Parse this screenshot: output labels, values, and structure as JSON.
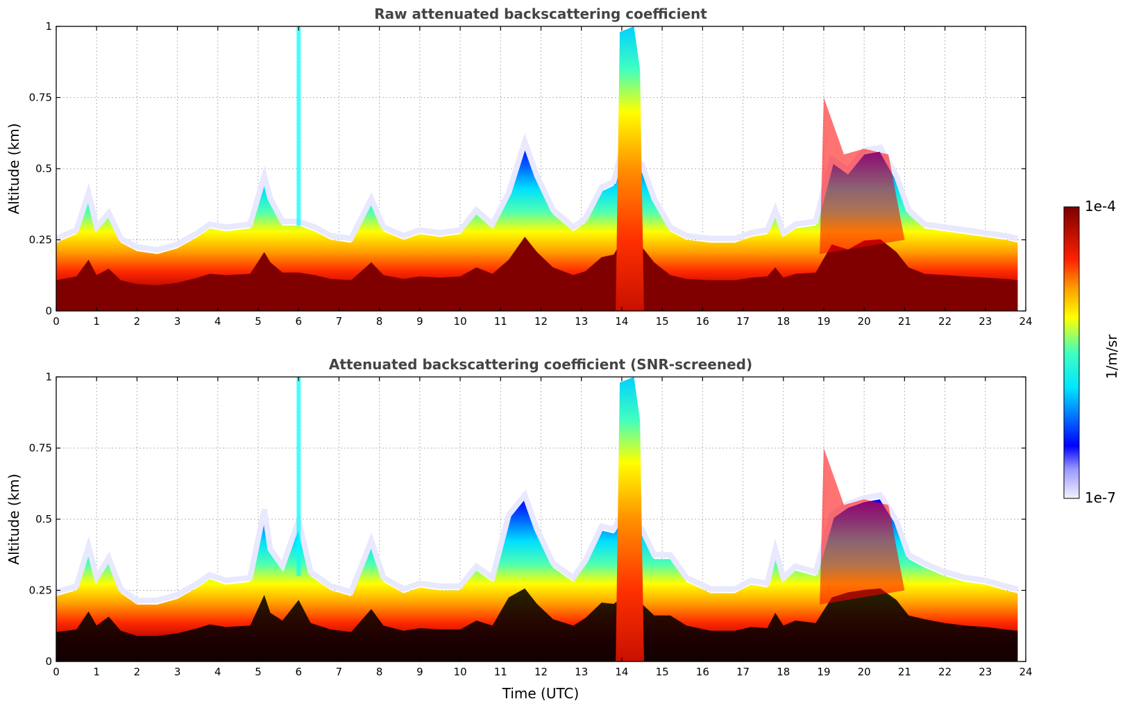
{
  "colors": {
    "low": "#e8e8ff",
    "blue": "#0000ff",
    "cyan": "#00ffff",
    "yellow": "#ffff00",
    "red": "#ff0000",
    "high": "#800000",
    "screened": "#000000",
    "title": "#444444"
  },
  "chart_data": [
    {
      "type": "heatmap",
      "title": "Raw attenuated backscattering coefficient",
      "xlabel": "",
      "ylabel": "Altitude (km)",
      "xlim": [
        0,
        24
      ],
      "ylim": [
        0,
        1
      ],
      "xticks": [
        "0",
        "1",
        "2",
        "3",
        "4",
        "5",
        "6",
        "7",
        "8",
        "9",
        "10",
        "11",
        "12",
        "13",
        "14",
        "15",
        "16",
        "17",
        "18",
        "19",
        "20",
        "21",
        "22",
        "23",
        "24"
      ],
      "yticks": [
        "0",
        "0.25",
        "0.5",
        "0.75",
        "1"
      ],
      "grid": true,
      "screened": false,
      "boundary_layer_top_km": [
        [
          0.0,
          0.24
        ],
        [
          0.5,
          0.27
        ],
        [
          0.8,
          0.4
        ],
        [
          1.0,
          0.28
        ],
        [
          1.3,
          0.33
        ],
        [
          1.6,
          0.24
        ],
        [
          2.0,
          0.21
        ],
        [
          2.5,
          0.2
        ],
        [
          3.0,
          0.22
        ],
        [
          3.5,
          0.26
        ],
        [
          3.8,
          0.29
        ],
        [
          4.2,
          0.28
        ],
        [
          4.8,
          0.29
        ],
        [
          5.15,
          0.46
        ],
        [
          5.3,
          0.38
        ],
        [
          5.6,
          0.3
        ],
        [
          6.0,
          0.3
        ],
        [
          6.4,
          0.28
        ],
        [
          6.8,
          0.25
        ],
        [
          7.3,
          0.24
        ],
        [
          7.8,
          0.38
        ],
        [
          8.1,
          0.28
        ],
        [
          8.6,
          0.25
        ],
        [
          9.0,
          0.27
        ],
        [
          9.5,
          0.26
        ],
        [
          10.0,
          0.27
        ],
        [
          10.4,
          0.34
        ],
        [
          10.8,
          0.29
        ],
        [
          11.2,
          0.4
        ],
        [
          11.6,
          0.58
        ],
        [
          11.9,
          0.46
        ],
        [
          12.3,
          0.34
        ],
        [
          12.8,
          0.28
        ],
        [
          13.1,
          0.31
        ],
        [
          13.5,
          0.42
        ],
        [
          13.8,
          0.44
        ],
        [
          14.0,
          0.55
        ],
        [
          14.5,
          0.5
        ],
        [
          14.8,
          0.38
        ],
        [
          15.2,
          0.28
        ],
        [
          15.6,
          0.25
        ],
        [
          16.2,
          0.24
        ],
        [
          16.8,
          0.24
        ],
        [
          17.2,
          0.26
        ],
        [
          17.6,
          0.27
        ],
        [
          17.8,
          0.34
        ],
        [
          18.0,
          0.26
        ],
        [
          18.3,
          0.29
        ],
        [
          18.8,
          0.3
        ],
        [
          19.2,
          0.52
        ],
        [
          19.6,
          0.48
        ],
        [
          20.0,
          0.55
        ],
        [
          20.4,
          0.56
        ],
        [
          20.8,
          0.46
        ],
        [
          21.1,
          0.34
        ],
        [
          21.5,
          0.29
        ],
        [
          22.0,
          0.28
        ],
        [
          22.5,
          0.27
        ],
        [
          23.0,
          0.26
        ],
        [
          23.5,
          0.25
        ],
        [
          23.8,
          0.24
        ]
      ]
    },
    {
      "type": "heatmap",
      "title": "Attenuated backscattering coefficient (SNR-screened)",
      "xlabel": "Time (UTC)",
      "ylabel": "Altitude (km)",
      "xlim": [
        0,
        24
      ],
      "ylim": [
        0,
        1
      ],
      "xticks": [
        "0",
        "1",
        "2",
        "3",
        "4",
        "5",
        "6",
        "7",
        "8",
        "9",
        "10",
        "11",
        "12",
        "13",
        "14",
        "15",
        "16",
        "17",
        "18",
        "19",
        "20",
        "21",
        "22",
        "23",
        "24"
      ],
      "yticks": [
        "0",
        "0.25",
        "0.5",
        "0.75",
        "1"
      ],
      "grid": true,
      "screened": true,
      "boundary_layer_top_km": [
        [
          0.0,
          0.23
        ],
        [
          0.5,
          0.25
        ],
        [
          0.8,
          0.39
        ],
        [
          1.0,
          0.28
        ],
        [
          1.3,
          0.35
        ],
        [
          1.6,
          0.24
        ],
        [
          2.0,
          0.2
        ],
        [
          2.5,
          0.2
        ],
        [
          3.0,
          0.22
        ],
        [
          3.5,
          0.26
        ],
        [
          3.8,
          0.29
        ],
        [
          4.2,
          0.27
        ],
        [
          4.8,
          0.28
        ],
        [
          5.15,
          0.52
        ],
        [
          5.3,
          0.38
        ],
        [
          5.6,
          0.32
        ],
        [
          6.0,
          0.48
        ],
        [
          6.3,
          0.3
        ],
        [
          6.8,
          0.25
        ],
        [
          7.3,
          0.23
        ],
        [
          7.8,
          0.41
        ],
        [
          8.1,
          0.28
        ],
        [
          8.6,
          0.24
        ],
        [
          9.0,
          0.26
        ],
        [
          9.5,
          0.25
        ],
        [
          10.0,
          0.25
        ],
        [
          10.4,
          0.32
        ],
        [
          10.8,
          0.28
        ],
        [
          11.2,
          0.5
        ],
        [
          11.6,
          0.57
        ],
        [
          11.9,
          0.45
        ],
        [
          12.3,
          0.33
        ],
        [
          12.8,
          0.28
        ],
        [
          13.1,
          0.34
        ],
        [
          13.5,
          0.46
        ],
        [
          13.8,
          0.45
        ],
        [
          14.0,
          0.5
        ],
        [
          14.5,
          0.45
        ],
        [
          14.8,
          0.36
        ],
        [
          15.2,
          0.36
        ],
        [
          15.6,
          0.28
        ],
        [
          16.2,
          0.24
        ],
        [
          16.8,
          0.24
        ],
        [
          17.2,
          0.27
        ],
        [
          17.6,
          0.26
        ],
        [
          17.8,
          0.38
        ],
        [
          18.0,
          0.28
        ],
        [
          18.3,
          0.32
        ],
        [
          18.8,
          0.3
        ],
        [
          19.2,
          0.5
        ],
        [
          19.6,
          0.54
        ],
        [
          20.0,
          0.56
        ],
        [
          20.4,
          0.57
        ],
        [
          20.8,
          0.48
        ],
        [
          21.1,
          0.36
        ],
        [
          21.5,
          0.33
        ],
        [
          22.0,
          0.3
        ],
        [
          22.5,
          0.28
        ],
        [
          23.0,
          0.27
        ],
        [
          23.5,
          0.25
        ],
        [
          23.8,
          0.24
        ]
      ]
    }
  ],
  "colorbar": {
    "label": "1/m/sr",
    "max_label": "1e-4",
    "min_label": "1e-7",
    "scale": "log",
    "range": [
      1e-07,
      0.0001
    ]
  }
}
